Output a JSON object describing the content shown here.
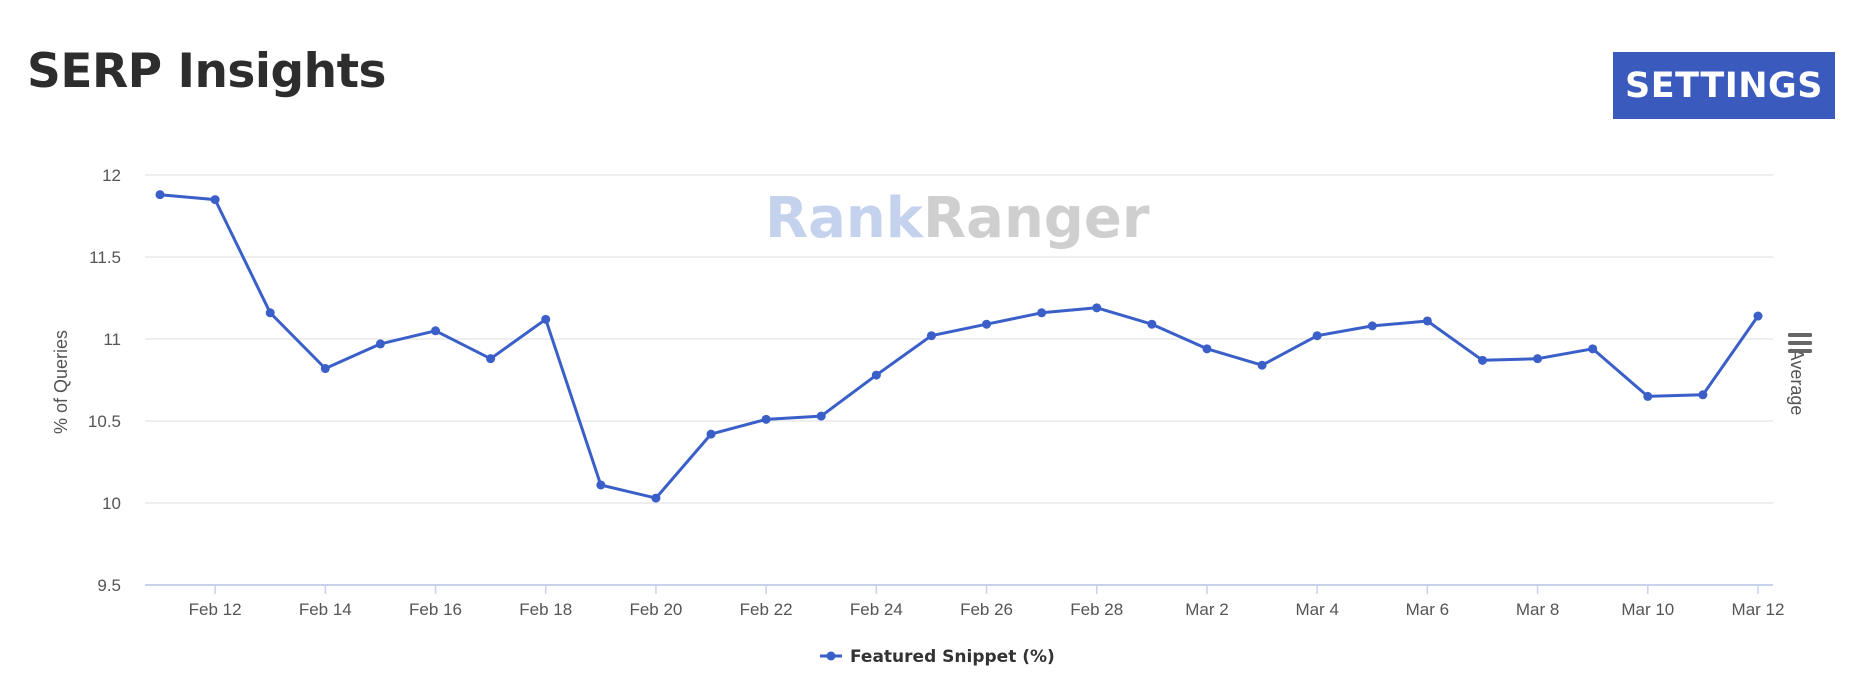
{
  "header": {
    "title": "SERP Insights",
    "settings_label": "SETTINGS"
  },
  "watermark": {
    "part1": "Rank",
    "part2": "Ranger"
  },
  "chart_data": {
    "type": "line",
    "title": "",
    "ylabel": "% of Queries",
    "y2label": "Average",
    "ylim": [
      9.5,
      12
    ],
    "yticks": [
      9.5,
      10,
      10.5,
      11,
      11.5,
      12
    ],
    "xtick_labels": [
      "Feb 12",
      "Feb 14",
      "Feb 16",
      "Feb 18",
      "Feb 20",
      "Feb 22",
      "Feb 24",
      "Feb 26",
      "Feb 28",
      "Mar 2",
      "Mar 4",
      "Mar 6",
      "Mar 8",
      "Mar 10",
      "Mar 12"
    ],
    "x": [
      "Feb 11",
      "Feb 12",
      "Feb 13",
      "Feb 14",
      "Feb 15",
      "Feb 16",
      "Feb 17",
      "Feb 18",
      "Feb 19",
      "Feb 20",
      "Feb 21",
      "Feb 22",
      "Feb 23",
      "Feb 24",
      "Feb 25",
      "Feb 26",
      "Feb 27",
      "Feb 28",
      "Mar 1",
      "Mar 2",
      "Mar 3",
      "Mar 4",
      "Mar 5",
      "Mar 6",
      "Mar 7",
      "Mar 8",
      "Mar 9",
      "Mar 10",
      "Mar 11",
      "Mar 12"
    ],
    "series": [
      {
        "name": "Featured Snippet (%)",
        "color": "#3a5fc8",
        "values": [
          11.88,
          11.85,
          11.16,
          10.82,
          10.97,
          11.05,
          10.88,
          11.12,
          10.11,
          10.03,
          10.42,
          10.51,
          10.53,
          10.78,
          11.02,
          11.09,
          11.16,
          11.19,
          11.09,
          10.94,
          10.84,
          11.02,
          11.08,
          11.11,
          10.87,
          10.88,
          10.94,
          10.65,
          10.66,
          11.14
        ]
      }
    ],
    "grid": true,
    "legend_position": "bottom-center"
  }
}
